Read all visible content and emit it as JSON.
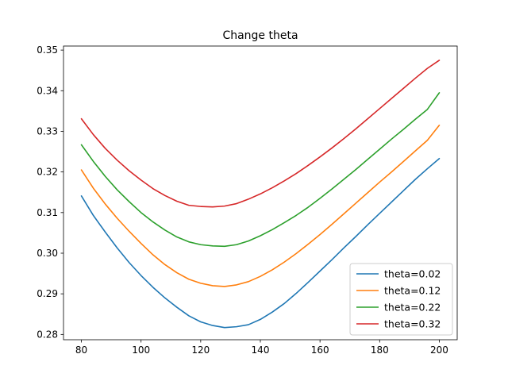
{
  "chart_data": {
    "type": "line",
    "title": "Change theta",
    "xlabel": "",
    "ylabel": "",
    "xlim": [
      74,
      206
    ],
    "ylim": [
      0.2787,
      0.351
    ],
    "xticks": [
      80,
      100,
      120,
      140,
      160,
      180,
      200
    ],
    "yticks": [
      0.28,
      0.29,
      0.3,
      0.31,
      0.32,
      0.33,
      0.34,
      0.35
    ],
    "ytick_labels": [
      "0.28",
      "0.29",
      "0.30",
      "0.31",
      "0.32",
      "0.33",
      "0.34",
      "0.35"
    ],
    "grid": false,
    "legend_position": "lower-right",
    "x": [
      80,
      84,
      88,
      92,
      96,
      100,
      104,
      108,
      112,
      116,
      120,
      124,
      128,
      132,
      136,
      140,
      144,
      148,
      152,
      156,
      160,
      164,
      168,
      172,
      176,
      180,
      184,
      188,
      192,
      196,
      200
    ],
    "series": [
      {
        "name": "theta=0.02",
        "color": "#1f77b4",
        "values": [
          0.3141,
          0.3093,
          0.3052,
          0.3013,
          0.2977,
          0.2945,
          0.2916,
          0.289,
          0.2867,
          0.2846,
          0.2831,
          0.2822,
          0.2817,
          0.2819,
          0.2824,
          0.2837,
          0.2855,
          0.2876,
          0.2901,
          0.2928,
          0.2956,
          0.2984,
          0.3013,
          0.3041,
          0.307,
          0.3098,
          0.3126,
          0.3154,
          0.3182,
          0.3208,
          0.3233
        ]
      },
      {
        "name": "theta=0.12",
        "color": "#ff7f0e",
        "values": [
          0.3205,
          0.316,
          0.3121,
          0.3086,
          0.3054,
          0.3024,
          0.2996,
          0.2972,
          0.2952,
          0.2936,
          0.2926,
          0.292,
          0.2918,
          0.2922,
          0.293,
          0.2943,
          0.2959,
          0.2978,
          0.2999,
          0.3022,
          0.3046,
          0.3071,
          0.3097,
          0.3123,
          0.3149,
          0.3175,
          0.32,
          0.3226,
          0.3252,
          0.3278,
          0.3315
        ]
      },
      {
        "name": "theta=0.22",
        "color": "#2ca02c",
        "values": [
          0.3267,
          0.3226,
          0.3189,
          0.3156,
          0.3127,
          0.31,
          0.3077,
          0.3057,
          0.304,
          0.3028,
          0.3021,
          0.3018,
          0.3017,
          0.3021,
          0.303,
          0.3043,
          0.3058,
          0.3075,
          0.3093,
          0.3113,
          0.3135,
          0.3158,
          0.3182,
          0.3206,
          0.3231,
          0.3256,
          0.3281,
          0.3305,
          0.333,
          0.3354,
          0.3395
        ]
      },
      {
        "name": "theta=0.32",
        "color": "#d62728",
        "values": [
          0.3331,
          0.3292,
          0.3258,
          0.3229,
          0.3203,
          0.318,
          0.3159,
          0.3142,
          0.3128,
          0.3118,
          0.3115,
          0.3114,
          0.3116,
          0.3122,
          0.3133,
          0.3146,
          0.3161,
          0.3178,
          0.3196,
          0.3216,
          0.3237,
          0.3259,
          0.3282,
          0.3306,
          0.3331,
          0.3356,
          0.3381,
          0.3406,
          0.3431,
          0.3455,
          0.3475
        ]
      }
    ]
  }
}
